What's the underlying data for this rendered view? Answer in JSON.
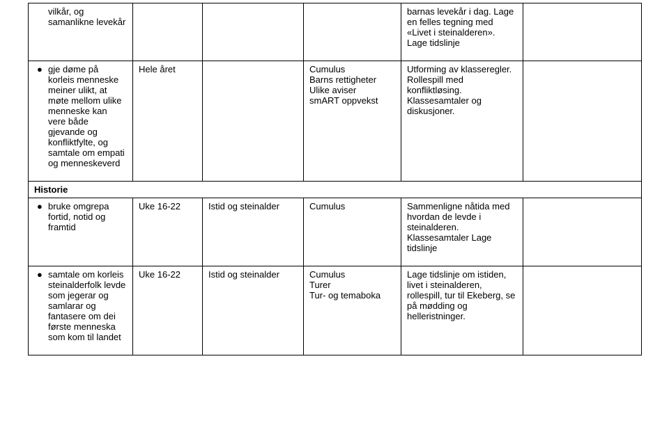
{
  "rows": {
    "r0": {
      "goal": "vilkår, og samanlikne levekår",
      "desc": "barnas levekår i dag. Lage en felles tegning med «Livet i steinalderen». Lage tidslinje"
    },
    "r1": {
      "goal": "gje døme på korleis menneske meiner ulikt, at møte mellom ulike menneske kan vere både gjevande og konfliktfylte, og samtale om empati og menneskeverd",
      "when": "Hele året",
      "resources": "Cumulus\nBarns rettigheter\nUlike aviser\nsmART oppvekst",
      "desc": "Utforming av klasseregler. Rollespill med konfliktløsing. Klassesamtaler og diskusjoner."
    },
    "section": "Historie",
    "r2": {
      "goal": "bruke omgrepa fortid, notid og framtid",
      "when": "Uke 16-22",
      "topic": "Istid og steinalder",
      "resources": "Cumulus",
      "desc": "Sammenligne nåtida med hvordan de levde i steinalderen. Klassesamtaler Lage tidslinje"
    },
    "r3": {
      "goal": "samtale om korleis steinalderfolk levde som jegerar og samlarar og fantasere om dei første menneska som kom til landet",
      "when": "Uke 16-22",
      "topic": "Istid og steinalder",
      "resources": "Cumulus\nTurer\nTur- og temaboka",
      "desc": "Lage tidslinje om istiden, livet i steinalderen, rollespill, tur til Ekeberg, se på mødding og helleristninger."
    }
  }
}
